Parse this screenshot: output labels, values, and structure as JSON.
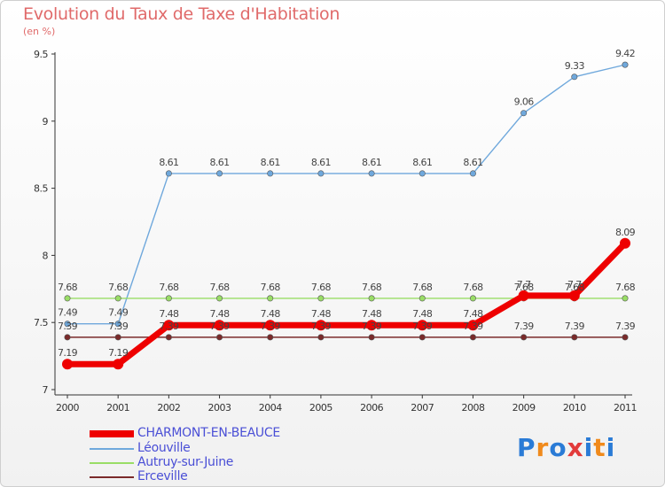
{
  "chart_data": {
    "type": "line",
    "title": "Evolution du Taux de Taxe d'Habitation",
    "subtitle": "(en %)",
    "categories": [
      "2000",
      "2001",
      "2002",
      "2003",
      "2004",
      "2005",
      "2006",
      "2007",
      "2008",
      "2009",
      "2010",
      "2011"
    ],
    "ylim": [
      7,
      9.5
    ],
    "yticks": [
      "7",
      "7.5",
      "8",
      "8.5",
      "9",
      "9.5"
    ],
    "legend_position": "bottom-left",
    "series": [
      {
        "name": "CHARMONT-EN-BEAUCE",
        "color": "#ee0000",
        "values": [
          7.19,
          7.19,
          7.48,
          7.48,
          7.48,
          7.48,
          7.48,
          7.48,
          7.48,
          7.7,
          7.7,
          8.09
        ],
        "labels": [
          "7.19",
          "7.19",
          "7.48",
          "7.48",
          "7.48",
          "7.48",
          "7.48",
          "7.48",
          "7.48",
          "7.7",
          "7.7",
          "8.09"
        ]
      },
      {
        "name": "Léouville",
        "color": "#6fa8dc",
        "values": [
          7.49,
          7.49,
          8.61,
          8.61,
          8.61,
          8.61,
          8.61,
          8.61,
          8.61,
          9.06,
          9.33,
          9.42
        ],
        "labels": [
          "7.49",
          "7.49",
          "8.61",
          "8.61",
          "8.61",
          "8.61",
          "8.61",
          "8.61",
          "8.61",
          "9.06",
          "9.33",
          "9.42"
        ]
      },
      {
        "name": "Autruy-sur-Juine",
        "color": "#99dd66",
        "values": [
          7.68,
          7.68,
          7.68,
          7.68,
          7.68,
          7.68,
          7.68,
          7.68,
          7.68,
          7.68,
          7.68,
          7.68
        ],
        "labels": [
          "7.68",
          "7.68",
          "7.68",
          "7.68",
          "7.68",
          "7.68",
          "7.68",
          "7.68",
          "7.68",
          "7.68",
          "7.68",
          "7.68"
        ]
      },
      {
        "name": "Erceville",
        "color": "#7a2a2a",
        "values": [
          7.39,
          7.39,
          7.39,
          7.39,
          7.39,
          7.39,
          7.39,
          7.39,
          7.39,
          7.39,
          7.39,
          7.39
        ],
        "labels": [
          "7.39",
          "7.39",
          "7.39",
          "7.39",
          "7.39",
          "7.39",
          "7.39",
          "7.39",
          "7.39",
          "7.39",
          "7.39",
          "7.39"
        ]
      }
    ]
  },
  "logo": {
    "text": "Proxiti",
    "colors": [
      "#2a7bd6",
      "#f08a1c",
      "#2a7bd6",
      "#e23b3b",
      "#2a7bd6",
      "#f08a1c",
      "#2a7bd6"
    ]
  }
}
